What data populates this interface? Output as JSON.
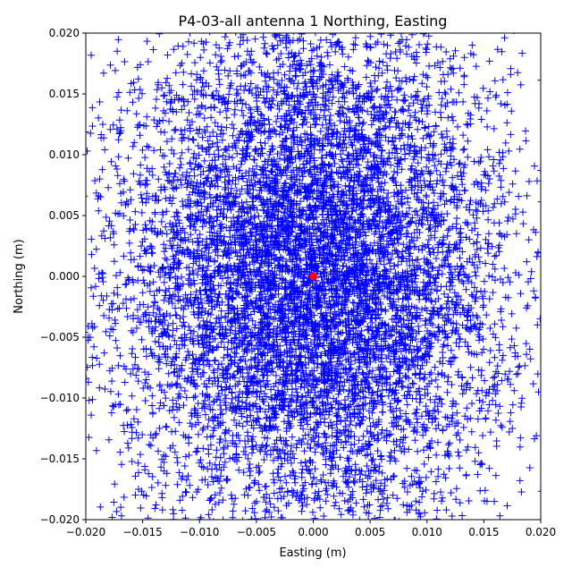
{
  "chart_data": {
    "type": "scatter",
    "title": "P4-03-all antenna 1 Northing, Easting",
    "xlabel": "Easting (m)",
    "ylabel": "Northing (m)",
    "xlim": [
      -0.02,
      0.02
    ],
    "ylim": [
      -0.02,
      0.02
    ],
    "xticks": [
      "−0.020",
      "−0.015",
      "−0.010",
      "−0.005",
      "0.000",
      "0.005",
      "0.010",
      "0.015",
      "0.020"
    ],
    "yticks": [
      "−0.020",
      "−0.015",
      "−0.010",
      "−0.005",
      "0.000",
      "0.005",
      "0.010",
      "0.015",
      "0.020"
    ],
    "xtick_values": [
      -0.02,
      -0.015,
      -0.01,
      -0.005,
      0,
      0.005,
      0.01,
      0.015,
      0.02
    ],
    "ytick_values": [
      -0.02,
      -0.015,
      -0.01,
      -0.005,
      0,
      0.005,
      0.01,
      0.015,
      0.02
    ],
    "grid": false,
    "series": [
      {
        "marker": "plus",
        "color": "#0000ff",
        "distribution": {
          "mean_easting": 0.0,
          "mean_northing": 0.0,
          "std_easting": 0.0085,
          "std_northing": 0.0105
        }
      },
      {
        "marker": "circle",
        "color": "#ff0000",
        "points": [
          [
            0.0,
            0.0
          ]
        ]
      }
    ]
  }
}
